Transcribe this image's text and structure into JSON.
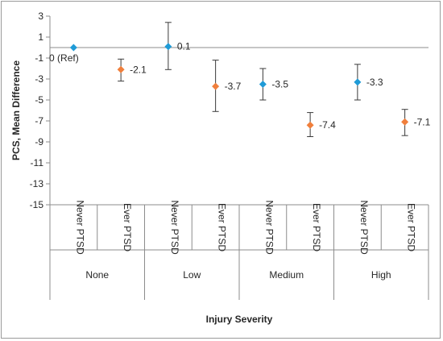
{
  "chart_data": {
    "type": "scatter",
    "title": "",
    "xlabel": "Injury Severity",
    "ylabel": "PCS, Mean Difference",
    "ylim": [
      -15,
      3
    ],
    "y_ticks": [
      3,
      1,
      -1,
      -3,
      -5,
      -7,
      -9,
      -11,
      -13,
      -15
    ],
    "grid": false,
    "groups": [
      "None",
      "Low",
      "Medium",
      "High"
    ],
    "subcategories": [
      "Never PTSD",
      "Ever PTSD"
    ],
    "colors": {
      "Never PTSD": "#1f9bd7",
      "Ever PTSD": "#f07f3c"
    },
    "points": [
      {
        "group": "None",
        "sub": "Never PTSD",
        "value": 0,
        "err_low": 0,
        "err_high": 0,
        "label": "0 (Ref)"
      },
      {
        "group": "None",
        "sub": "Ever PTSD",
        "value": -2.1,
        "err_low": -3.2,
        "err_high": -1.1,
        "label": "-2.1"
      },
      {
        "group": "Low",
        "sub": "Never PTSD",
        "value": 0.1,
        "err_low": -2.1,
        "err_high": 2.4,
        "label": "0.1"
      },
      {
        "group": "Low",
        "sub": "Ever PTSD",
        "value": -3.7,
        "err_low": -6.1,
        "err_high": -1.2,
        "label": "-3.7"
      },
      {
        "group": "Medium",
        "sub": "Never PTSD",
        "value": -3.5,
        "err_low": -5.0,
        "err_high": -2.0,
        "label": "-3.5"
      },
      {
        "group": "Medium",
        "sub": "Ever PTSD",
        "value": -7.4,
        "err_low": -8.5,
        "err_high": -6.2,
        "label": "-7.4"
      },
      {
        "group": "High",
        "sub": "Never PTSD",
        "value": -3.3,
        "err_low": -5.0,
        "err_high": -1.6,
        "label": "-3.3"
      },
      {
        "group": "High",
        "sub": "Ever PTSD",
        "value": -7.1,
        "err_low": -8.4,
        "err_high": -5.9,
        "label": "-7.1"
      }
    ]
  }
}
